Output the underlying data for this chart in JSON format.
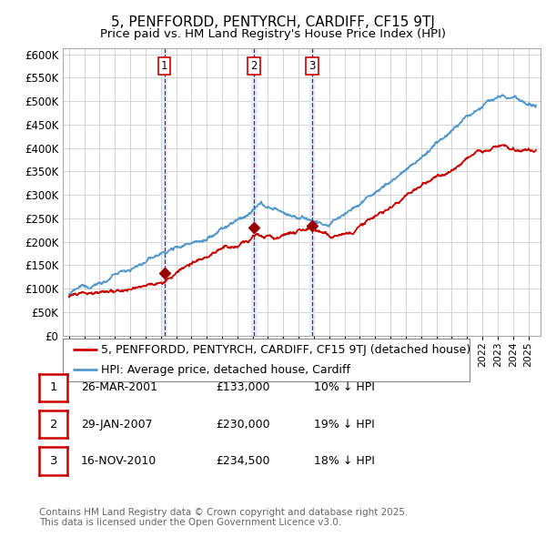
{
  "title": "5, PENFFORDD, PENTYRCH, CARDIFF, CF15 9TJ",
  "subtitle": "Price paid vs. HM Land Registry's House Price Index (HPI)",
  "ylim": [
    0,
    612500
  ],
  "yticks": [
    0,
    50000,
    100000,
    150000,
    200000,
    250000,
    300000,
    350000,
    400000,
    450000,
    500000,
    550000,
    600000
  ],
  "xlim_start": 1994.6,
  "xlim_end": 2025.8,
  "sale_dates": [
    2001.23,
    2007.08,
    2010.88
  ],
  "sale_prices": [
    133000,
    230000,
    234500
  ],
  "sale_labels": [
    "1",
    "2",
    "3"
  ],
  "vline_color": "#cc0000",
  "vline_fill_color": "#ddeeff",
  "sale_marker_color": "#990000",
  "hpi_line_color": "#5599cc",
  "price_line_color": "#cc0000",
  "legend_entries": [
    "5, PENFFORDD, PENTYRCH, CARDIFF, CF15 9TJ (detached house)",
    "HPI: Average price, detached house, Cardiff"
  ],
  "table_rows": [
    [
      "1",
      "26-MAR-2001",
      "£133,000",
      "10% ↓ HPI"
    ],
    [
      "2",
      "29-JAN-2007",
      "£230,000",
      "19% ↓ HPI"
    ],
    [
      "3",
      "16-NOV-2010",
      "£234,500",
      "18% ↓ HPI"
    ]
  ],
  "footnote": "Contains HM Land Registry data © Crown copyright and database right 2025.\nThis data is licensed under the Open Government Licence v3.0.",
  "bg_color": "#ffffff",
  "grid_color": "#cccccc",
  "title_fontsize": 11,
  "subtitle_fontsize": 9.5,
  "axis_fontsize": 8,
  "legend_fontsize": 9,
  "table_fontsize": 9
}
